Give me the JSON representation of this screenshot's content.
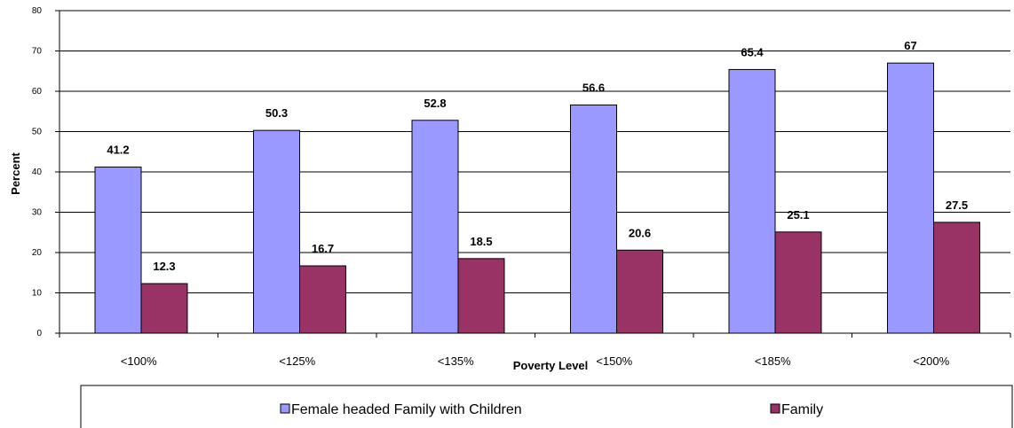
{
  "chart_data": {
    "type": "bar",
    "title": "",
    "xlabel": "Poverty Level",
    "ylabel": "Percent",
    "categories": [
      "<100%",
      "<125%",
      "<135%",
      "<150%",
      "<185%",
      "<200%"
    ],
    "series": [
      {
        "name": "Female headed Family with Children",
        "values": [
          41.2,
          50.3,
          52.8,
          56.6,
          65.4,
          67
        ],
        "color": "#9999FF"
      },
      {
        "name": "Family",
        "values": [
          12.3,
          16.7,
          18.5,
          20.6,
          25.1,
          27.5
        ],
        "color": "#993366"
      }
    ],
    "value_labels": {
      "Female headed Family with Children": [
        "41.2",
        "50.3",
        "52.8",
        "56.6",
        "65.4",
        "67"
      ],
      "Family": [
        "12.3",
        "16.7",
        "18.5",
        "20.6",
        "25.1",
        "27.5"
      ]
    },
    "ylim": [
      0,
      80
    ],
    "yticks": [
      0,
      10,
      20,
      30,
      40,
      50,
      60,
      70,
      80
    ],
    "grid": true,
    "legend_position": "bottom"
  }
}
